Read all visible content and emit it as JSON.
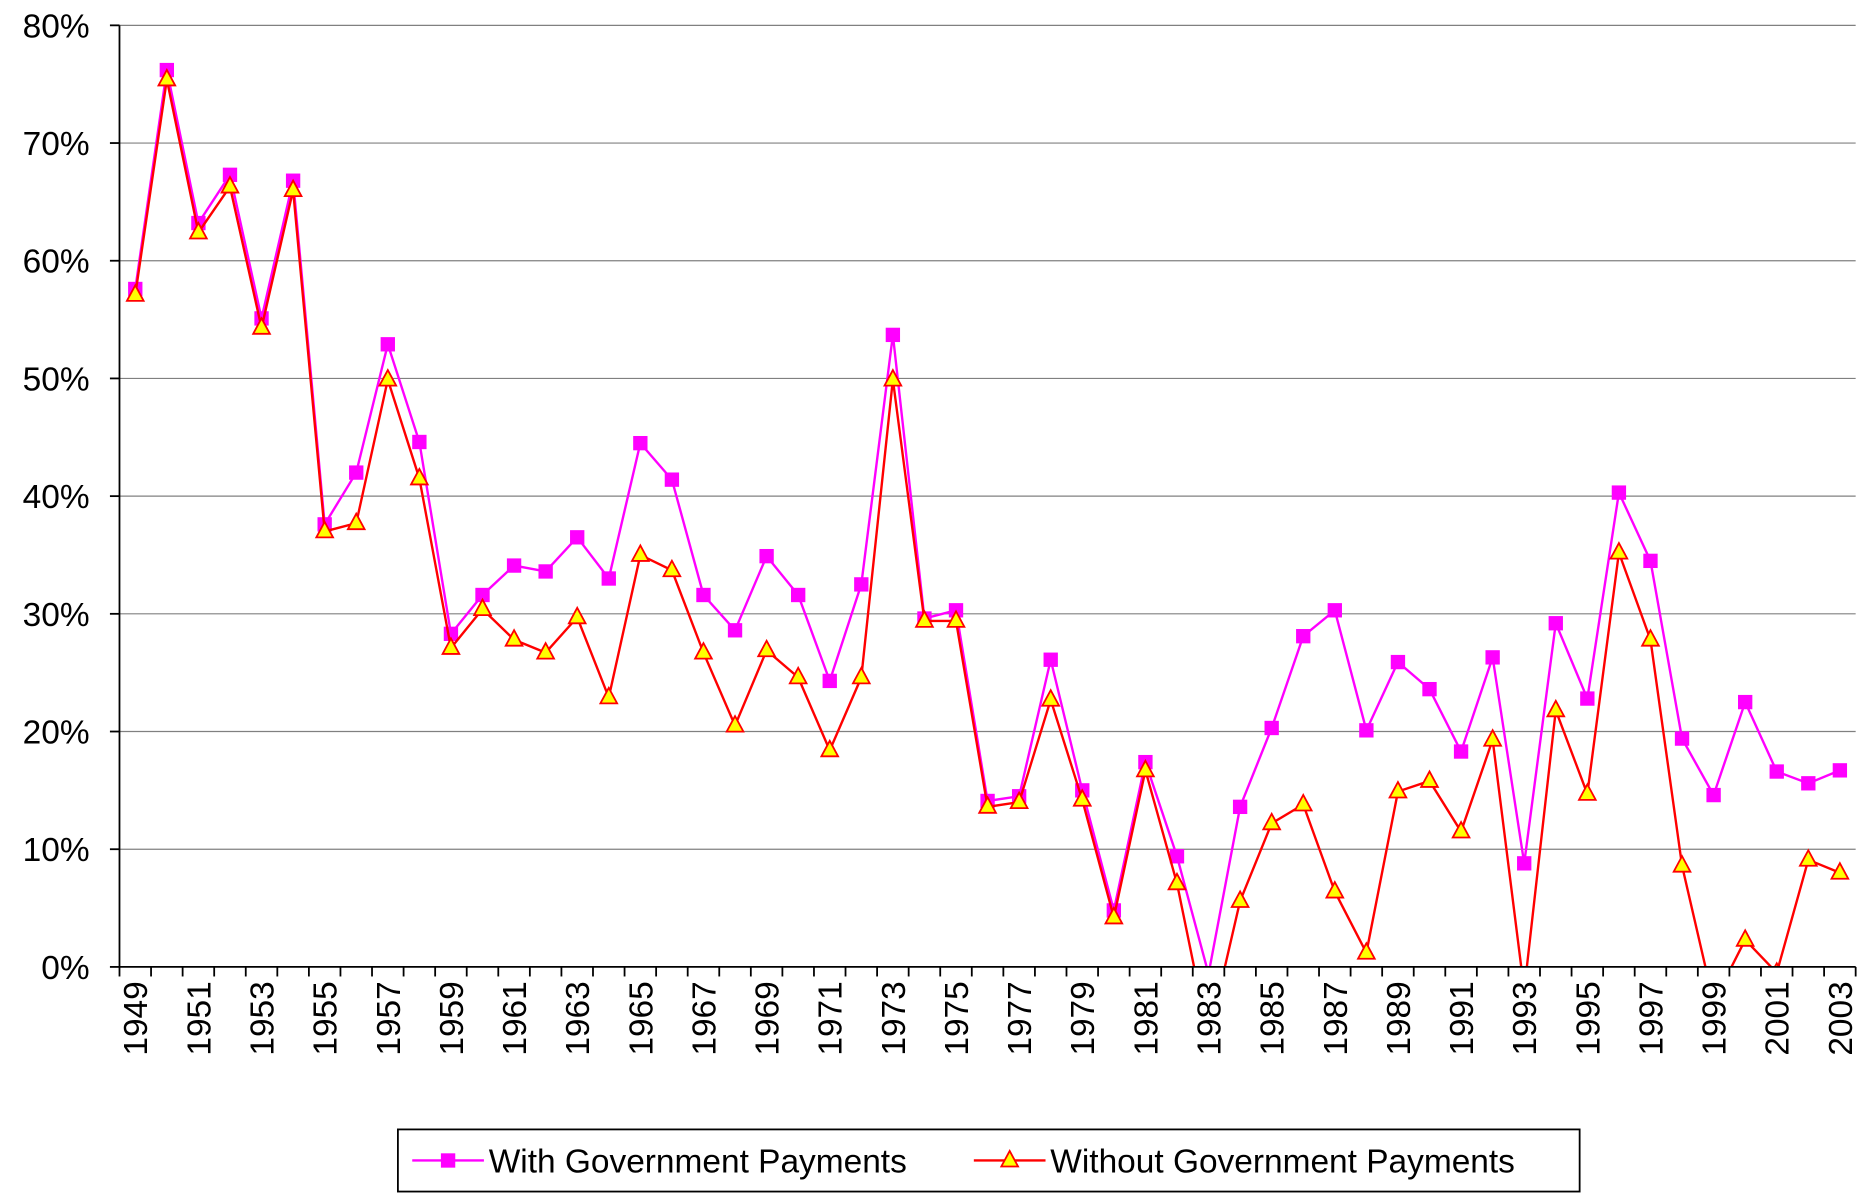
{
  "chart_data": {
    "type": "line",
    "categories": [
      "1949",
      null,
      "1951",
      null,
      "1953",
      null,
      "1955",
      null,
      "1957",
      null,
      "1959",
      null,
      "1961",
      null,
      "1963",
      null,
      "1965",
      null,
      "1967",
      null,
      "1969",
      null,
      "1971",
      null,
      "1973",
      null,
      "1975",
      null,
      "1977",
      null,
      "1979",
      null,
      "1981",
      null,
      "1983",
      null,
      "1985",
      null,
      "1987",
      null,
      "1989",
      null,
      "1991",
      null,
      "1993",
      null,
      "1995",
      null,
      "1997",
      null,
      "1999",
      null,
      "2001",
      null,
      "2003"
    ],
    "series": [
      {
        "name": "With Government Payments",
        "color": "#ff00ff",
        "marker": "square",
        "values": [
          57.6,
          76.2,
          63.2,
          67.3,
          55.1,
          66.8,
          37.6,
          42.0,
          52.9,
          44.6,
          28.3,
          31.6,
          34.1,
          33.6,
          36.5,
          33.0,
          44.5,
          41.4,
          31.6,
          28.6,
          34.9,
          31.6,
          24.3,
          32.5,
          53.7,
          29.6,
          30.3,
          14.1,
          14.5,
          26.1,
          15.0,
          4.8,
          17.4,
          9.4,
          -0.6,
          13.6,
          20.3,
          28.1,
          30.3,
          20.1,
          25.9,
          23.6,
          18.3,
          26.3,
          8.8,
          29.2,
          22.8,
          40.3,
          34.5,
          19.4,
          14.6,
          22.5,
          16.6,
          15.6,
          16.7
        ]
      },
      {
        "name": "Without Government Payments",
        "color": "#ff0000",
        "marker_fill": "#ffff00",
        "marker": "triangle",
        "values": [
          57.1,
          75.4,
          62.4,
          66.3,
          54.3,
          66.0,
          37.0,
          37.7,
          49.9,
          41.5,
          27.1,
          30.4,
          27.8,
          26.7,
          29.7,
          22.9,
          35.0,
          33.7,
          26.7,
          20.5,
          26.9,
          24.6,
          18.4,
          24.6,
          49.9,
          29.4,
          29.4,
          13.6,
          14.0,
          22.7,
          14.2,
          4.2,
          16.7,
          7.1,
          -6.0,
          5.6,
          12.2,
          13.8,
          6.4,
          1.2,
          14.9,
          15.8,
          11.5,
          19.3,
          -2.0,
          21.8,
          14.7,
          35.2,
          27.8,
          8.6,
          -3.0,
          2.3,
          -0.5,
          9.1,
          8.0
        ]
      }
    ],
    "ylim": [
      0,
      80
    ],
    "yticks": [
      {
        "value": 0,
        "label": "0%"
      },
      {
        "value": 10,
        "label": "10%"
      },
      {
        "value": 20,
        "label": "20%"
      },
      {
        "value": 30,
        "label": "30%"
      },
      {
        "value": 40,
        "label": "40%"
      },
      {
        "value": 50,
        "label": "50%"
      },
      {
        "value": 60,
        "label": "60%"
      },
      {
        "value": 70,
        "label": "70%"
      },
      {
        "value": 80,
        "label": "80%"
      }
    ],
    "grid": true,
    "legend": "bottom"
  }
}
